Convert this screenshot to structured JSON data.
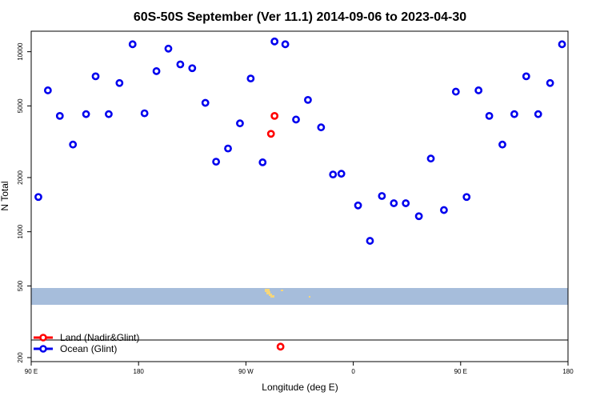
{
  "chart_data": {
    "type": "scatter",
    "title": "60S-50S September (Ver 11.1)   2014-09-06 to 2023-04-30",
    "xlabel": "Longitude (deg E)",
    "ylabel": "N Total",
    "y_scale": "log",
    "ylim": [
      190,
      13000
    ],
    "y_ticks": [
      200,
      500,
      1000,
      2000,
      5000,
      10000
    ],
    "y_tick_labels": [
      "200",
      "500",
      "1000",
      "2000",
      "5000",
      "10000"
    ],
    "x_ticks": [
      90,
      180,
      270,
      360,
      450,
      540
    ],
    "x_tick_labels": [
      "90 E",
      "180",
      "90 W",
      "0",
      "90 E",
      "180"
    ],
    "xlim": [
      90,
      540
    ],
    "grid": false,
    "legend_position": "bottom-left",
    "colors": {
      "land": "#ff0000",
      "ocean": "#0000ee",
      "band": "#a6bddb",
      "land_map": "#f5d67a"
    },
    "series": [
      {
        "name": "Land (Nadir&Glint)",
        "color": "#ff0000",
        "points": [
          [
            291,
            3500
          ],
          [
            294,
            4400
          ],
          [
            299,
            230
          ]
        ]
      },
      {
        "name": "Ocean (Glint)",
        "color": "#0000ee",
        "points": [
          [
            96,
            1560
          ],
          [
            104,
            6100
          ],
          [
            114,
            4400
          ],
          [
            125,
            3050
          ],
          [
            136,
            4500
          ],
          [
            144,
            7300
          ],
          [
            155,
            4500
          ],
          [
            164,
            6700
          ],
          [
            175,
            11000
          ],
          [
            185,
            4550
          ],
          [
            195,
            7800
          ],
          [
            205,
            10400
          ],
          [
            215,
            8500
          ],
          [
            225,
            8100
          ],
          [
            236,
            5200
          ],
          [
            245,
            2450
          ],
          [
            255,
            2900
          ],
          [
            265,
            4000
          ],
          [
            274,
            7100
          ],
          [
            284,
            2430
          ],
          [
            294,
            11400
          ],
          [
            303,
            11000
          ],
          [
            312,
            4200
          ],
          [
            322,
            5400
          ],
          [
            333,
            3800
          ],
          [
            343,
            2080
          ],
          [
            350,
            2100
          ],
          [
            364,
            1400
          ],
          [
            374,
            890
          ],
          [
            384,
            1580
          ],
          [
            394,
            1440
          ],
          [
            404,
            1440
          ],
          [
            415,
            1220
          ],
          [
            425,
            2550
          ],
          [
            436,
            1320
          ],
          [
            446,
            6000
          ],
          [
            455,
            1560
          ],
          [
            465,
            6100
          ],
          [
            474,
            4400
          ],
          [
            485,
            3050
          ],
          [
            495,
            4500
          ],
          [
            505,
            7300
          ],
          [
            515,
            4500
          ],
          [
            525,
            6700
          ],
          [
            535,
            11000
          ]
        ]
      }
    ]
  }
}
